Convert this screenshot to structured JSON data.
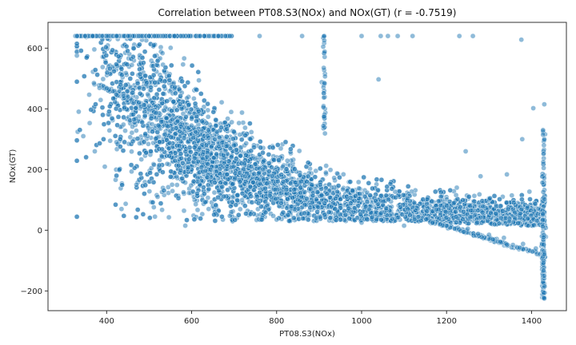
{
  "chart_data": {
    "type": "scatter",
    "title": "Correlation between PT08.S3(NOx) and NOx(GT) (r = -0.7519)",
    "xlabel": "PT08.S3(NOx)",
    "ylabel": "NOx(GT)",
    "xlim": [
      262,
      1482
    ],
    "ylim": [
      -265,
      685
    ],
    "xticks": [
      400,
      600,
      800,
      1000,
      1200,
      1400
    ],
    "yticks": [
      -200,
      0,
      200,
      400,
      600
    ],
    "grid": false,
    "colors": {
      "marker": "#1f77b4",
      "edge": "#ffffff",
      "axis": "#333333"
    },
    "marker_opacity": 0.5,
    "series": [
      {
        "values_sample": [
          {
            "x": 330,
            "y": 640
          },
          {
            "x": 350,
            "y": 640
          },
          {
            "x": 400,
            "y": 640
          },
          {
            "x": 450,
            "y": 640
          },
          {
            "x": 500,
            "y": 640
          },
          {
            "x": 560,
            "y": 640
          },
          {
            "x": 620,
            "y": 640
          },
          {
            "x": 690,
            "y": 640
          },
          {
            "x": 760,
            "y": 640
          },
          {
            "x": 860,
            "y": 640
          },
          {
            "x": 912,
            "y": 640
          },
          {
            "x": 1000,
            "y": 640
          },
          {
            "x": 1045,
            "y": 640
          },
          {
            "x": 1062,
            "y": 640
          },
          {
            "x": 1085,
            "y": 640
          },
          {
            "x": 1120,
            "y": 640
          },
          {
            "x": 1230,
            "y": 640
          },
          {
            "x": 1262,
            "y": 640
          },
          {
            "x": 1376,
            "y": 628
          },
          {
            "x": 370,
            "y": 485
          },
          {
            "x": 400,
            "y": 468
          },
          {
            "x": 450,
            "y": 440
          },
          {
            "x": 500,
            "y": 410
          },
          {
            "x": 600,
            "y": 345
          },
          {
            "x": 700,
            "y": 280
          },
          {
            "x": 1200,
            "y": 15
          },
          {
            "x": 1250,
            "y": 5
          },
          {
            "x": 1300,
            "y": -15
          },
          {
            "x": 1335,
            "y": -25
          },
          {
            "x": 1380,
            "y": -45
          },
          {
            "x": 1410,
            "y": -60
          },
          {
            "x": 1430,
            "y": -80
          },
          {
            "x": 1430,
            "y": -150
          },
          {
            "x": 1430,
            "y": -225
          },
          {
            "x": 1430,
            "y": 300
          },
          {
            "x": 1430,
            "y": 415
          },
          {
            "x": 1404,
            "y": 402
          },
          {
            "x": 1040,
            "y": 497
          },
          {
            "x": 1245,
            "y": 260
          },
          {
            "x": 1280,
            "y": 178
          },
          {
            "x": 1342,
            "y": 184
          },
          {
            "x": 1395,
            "y": 127
          },
          {
            "x": 1378,
            "y": 300
          },
          {
            "x": 585,
            "y": 15
          },
          {
            "x": 470,
            "y": 150
          },
          {
            "x": 520,
            "y": 110
          },
          {
            "x": 640,
            "y": 70
          },
          {
            "x": 800,
            "y": 35
          },
          {
            "x": 1000,
            "y": 25
          },
          {
            "x": 1100,
            "y": 15
          }
        ],
        "n_points_approx": 7000
      }
    ]
  }
}
